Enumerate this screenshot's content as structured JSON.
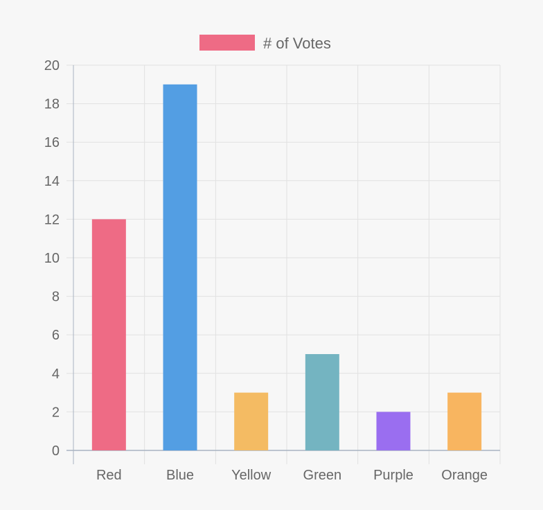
{
  "chart_data": {
    "type": "bar",
    "categories": [
      "Red",
      "Blue",
      "Yellow",
      "Green",
      "Purple",
      "Orange"
    ],
    "series": [
      {
        "name": "# of Votes",
        "values": [
          12,
          19,
          3,
          5,
          2,
          3
        ]
      }
    ],
    "bar_colors": [
      "#ee6b85",
      "#539ee3",
      "#f4bb63",
      "#74b4c1",
      "#9a6ef0",
      "#f8b560"
    ],
    "legend_color": "#ee6b85",
    "ylim": [
      0,
      20
    ],
    "yticks": [
      "0",
      "2",
      "4",
      "6",
      "8",
      "10",
      "12",
      "14",
      "16",
      "18",
      "20"
    ],
    "grid": true,
    "legend_position": "top"
  }
}
